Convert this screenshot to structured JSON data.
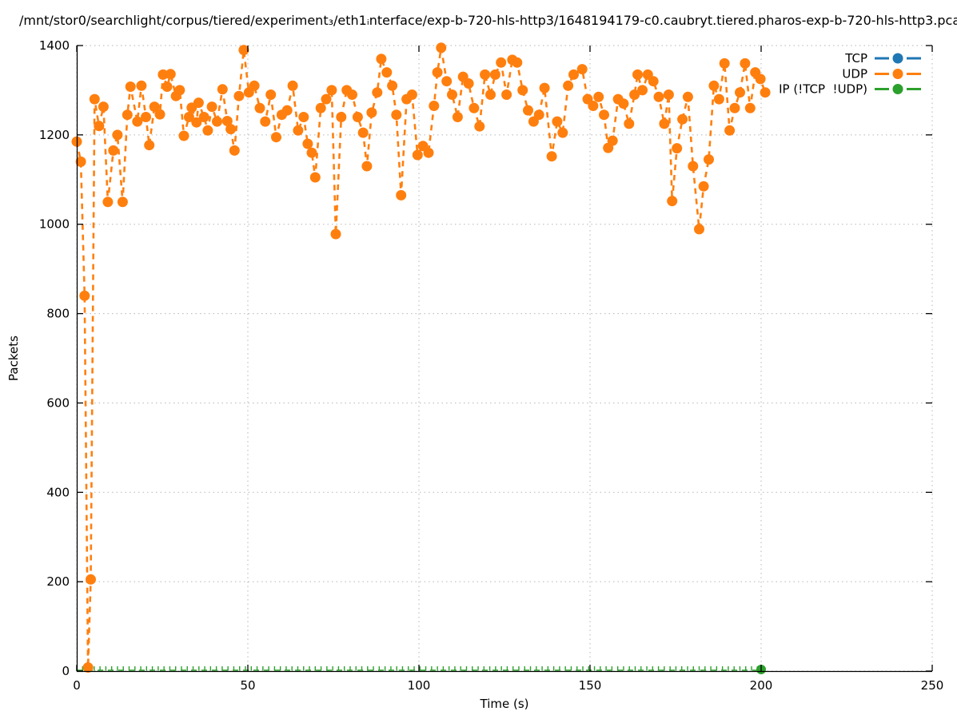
{
  "figure": {
    "title": "/mnt/stor0/searchlight/corpus/tiered/experiment₃/eth1ᵢnterface/exp-b-720-hls-http3/1648194179-c0.caubryt.tiered.pharos-exp-b-720-hls-http3.pca"
  },
  "chart_data": {
    "type": "line",
    "title": "/mnt/stor0/searchlight/corpus/tiered/experiment₃/eth1ᵢnterface/exp-b-720-hls-http3/1648194179-c0.caubryt.tiered.pharos-exp-b-720-hls-http3.pca",
    "xlabel": "Time (s)",
    "ylabel": "Packets",
    "xlim": [
      0,
      250
    ],
    "ylim": [
      0,
      1400
    ],
    "xticks": [
      0,
      50,
      100,
      150,
      200,
      250
    ],
    "yticks": [
      0,
      200,
      400,
      600,
      800,
      1000,
      1200,
      1400
    ],
    "grid": "dotted",
    "grid_color": "#b5b5b5",
    "legend_position": "top-right-inside",
    "marker": "filled-circle",
    "line_style": "dashed",
    "series": [
      {
        "name": "TCP",
        "color": "#1f77b4",
        "points": []
      },
      {
        "name": "UDP",
        "color": "#ff7f0e",
        "points": [
          [
            0,
            1185
          ],
          [
            1.2,
            1140
          ],
          [
            2.3,
            840
          ],
          [
            3.3,
            8
          ],
          [
            4.1,
            205
          ],
          [
            5.2,
            1280
          ],
          [
            6.5,
            1220
          ],
          [
            7.8,
            1263
          ],
          [
            9.1,
            1050
          ],
          [
            10.7,
            1165
          ],
          [
            11.9,
            1200
          ],
          [
            13.4,
            1050
          ],
          [
            14.8,
            1245
          ],
          [
            15.7,
            1308
          ],
          [
            17.7,
            1230
          ],
          [
            18.9,
            1310
          ],
          [
            20.2,
            1240
          ],
          [
            21.2,
            1177
          ],
          [
            22.7,
            1263
          ],
          [
            24.3,
            1246
          ],
          [
            25.2,
            1335
          ],
          [
            26.4,
            1308
          ],
          [
            27.4,
            1336
          ],
          [
            29,
            1287
          ],
          [
            30.1,
            1300
          ],
          [
            31.3,
            1198
          ],
          [
            32.8,
            1240
          ],
          [
            33.6,
            1261
          ],
          [
            35,
            1228
          ],
          [
            35.6,
            1272
          ],
          [
            37.2,
            1240
          ],
          [
            38.3,
            1210
          ],
          [
            39.5,
            1263
          ],
          [
            41,
            1230
          ],
          [
            42.6,
            1302
          ],
          [
            44,
            1231
          ],
          [
            45,
            1213
          ],
          [
            46.1,
            1165
          ],
          [
            47.4,
            1287
          ],
          [
            48.8,
            1390
          ],
          [
            50.3,
            1295
          ],
          [
            51.9,
            1310
          ],
          [
            53.5,
            1260
          ],
          [
            55.1,
            1230
          ],
          [
            56.7,
            1290
          ],
          [
            58.3,
            1195
          ],
          [
            59.9,
            1245
          ],
          [
            61.5,
            1255
          ],
          [
            63.1,
            1310
          ],
          [
            64.7,
            1210
          ],
          [
            66.3,
            1240
          ],
          [
            67.5,
            1180
          ],
          [
            68.7,
            1160
          ],
          [
            69.7,
            1105
          ],
          [
            71.3,
            1260
          ],
          [
            72.9,
            1280
          ],
          [
            74.5,
            1300
          ],
          [
            75.7,
            978
          ],
          [
            77.3,
            1240
          ],
          [
            78.9,
            1300
          ],
          [
            80.5,
            1290
          ],
          [
            82.1,
            1240
          ],
          [
            83.7,
            1205
          ],
          [
            84.8,
            1130
          ],
          [
            86.2,
            1250
          ],
          [
            87.8,
            1295
          ],
          [
            89,
            1370
          ],
          [
            90.6,
            1340
          ],
          [
            92.2,
            1310
          ],
          [
            93.4,
            1245
          ],
          [
            94.8,
            1065
          ],
          [
            96.4,
            1280
          ],
          [
            98,
            1290
          ],
          [
            99.6,
            1155
          ],
          [
            101.2,
            1175
          ],
          [
            102.8,
            1160
          ],
          [
            104.4,
            1265
          ],
          [
            105.4,
            1340
          ],
          [
            106.5,
            1395
          ],
          [
            108.1,
            1320
          ],
          [
            109.7,
            1290
          ],
          [
            111.3,
            1240
          ],
          [
            112.9,
            1330
          ],
          [
            114.5,
            1315
          ],
          [
            116.1,
            1260
          ],
          [
            117.7,
            1219
          ],
          [
            119.3,
            1335
          ],
          [
            120.9,
            1290
          ],
          [
            122.3,
            1335
          ],
          [
            124,
            1362
          ],
          [
            125.6,
            1290
          ],
          [
            127.3,
            1368
          ],
          [
            128.7,
            1362
          ],
          [
            130.3,
            1300
          ],
          [
            131.9,
            1255
          ],
          [
            133.5,
            1230
          ],
          [
            135.1,
            1245
          ],
          [
            136.7,
            1305
          ],
          [
            138.8,
            1152
          ],
          [
            140.4,
            1230
          ],
          [
            142,
            1205
          ],
          [
            143.6,
            1310
          ],
          [
            145.2,
            1335
          ],
          [
            147.7,
            1347
          ],
          [
            149.3,
            1280
          ],
          [
            150.9,
            1265
          ],
          [
            152.5,
            1285
          ],
          [
            154.1,
            1245
          ],
          [
            155.3,
            1171
          ],
          [
            156.6,
            1187
          ],
          [
            158.2,
            1280
          ],
          [
            159.8,
            1270
          ],
          [
            161.4,
            1225
          ],
          [
            163,
            1290
          ],
          [
            163.9,
            1335
          ],
          [
            165.3,
            1300
          ],
          [
            166.9,
            1335
          ],
          [
            168.5,
            1320
          ],
          [
            170.1,
            1285
          ],
          [
            171.7,
            1225
          ],
          [
            173,
            1290
          ],
          [
            174,
            1052
          ],
          [
            175.4,
            1170
          ],
          [
            177,
            1235
          ],
          [
            178.6,
            1285
          ],
          [
            180.1,
            1130
          ],
          [
            181.9,
            989
          ],
          [
            183.2,
            1085
          ],
          [
            184.7,
            1145
          ],
          [
            186.2,
            1310
          ],
          [
            187.7,
            1280
          ],
          [
            189.3,
            1360
          ],
          [
            190.8,
            1210
          ],
          [
            192.3,
            1260
          ],
          [
            193.8,
            1295
          ],
          [
            195.3,
            1360
          ],
          [
            196.8,
            1260
          ],
          [
            198.3,
            1340
          ],
          [
            199.8,
            1325
          ],
          [
            201.2,
            1295
          ]
        ]
      },
      {
        "name": "IP (!TCP  !UDP)",
        "color": "#2ca02c",
        "constant_value": 0,
        "t_start": 0,
        "t_end": 201,
        "point_spacing": 1.7,
        "marker_point": [
          200,
          0
        ]
      }
    ]
  }
}
